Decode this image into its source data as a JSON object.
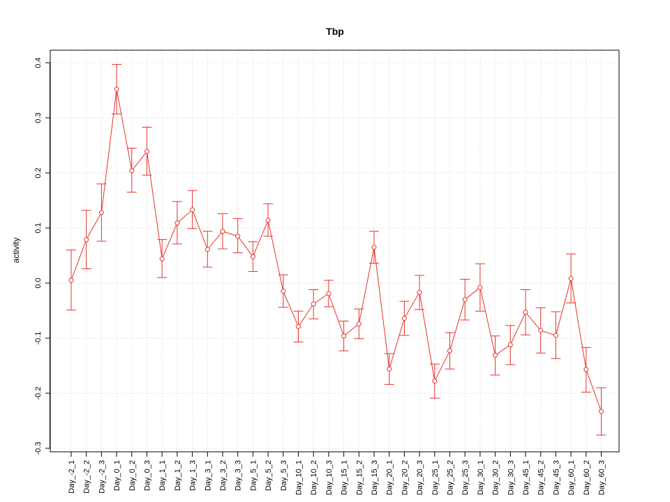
{
  "chart_data": {
    "type": "line",
    "title": "Tbp",
    "xlabel": "",
    "ylabel": "activity",
    "ylim": [
      -0.3,
      0.4
    ],
    "yticks": [
      "-0.3",
      "-0.2",
      "-0.1",
      "0.0",
      "0.1",
      "0.2",
      "0.3",
      "0.4"
    ],
    "grid": true,
    "categories": [
      "Day_-2_1",
      "Day_-2_2",
      "Day_-2_3",
      "Day_0_1",
      "Day_0_2",
      "Day_0_3",
      "Day_1_1",
      "Day_1_2",
      "Day_1_3",
      "Day_3_1",
      "Day_3_2",
      "Day_3_3",
      "Day_5_1",
      "Day_5_2",
      "Day_5_3",
      "Day_10_1",
      "Day_10_2",
      "Day_10_3",
      "Day_15_1",
      "Day_15_2",
      "Day_15_3",
      "Day_20_1",
      "Day_20_2",
      "Day_20_3",
      "Day_25_1",
      "Day_25_2",
      "Day_25_3",
      "Day_30_1",
      "Day_30_2",
      "Day_30_3",
      "Day_45_1",
      "Day_45_2",
      "Day_45_3",
      "Day_60_1",
      "Day_60_2",
      "Day_60_3"
    ],
    "series": [
      {
        "name": "",
        "color": "#e8302a",
        "values": [
          0.005,
          0.079,
          0.128,
          0.352,
          0.204,
          0.239,
          0.044,
          0.109,
          0.133,
          0.061,
          0.094,
          0.085,
          0.048,
          0.114,
          -0.015,
          -0.079,
          -0.038,
          -0.019,
          -0.096,
          -0.074,
          0.065,
          -0.156,
          -0.064,
          -0.017,
          -0.178,
          -0.123,
          -0.03,
          -0.008,
          -0.131,
          -0.112,
          -0.053,
          -0.086,
          -0.095,
          0.008,
          -0.157,
          -0.233
        ],
        "upper": [
          0.06,
          0.132,
          0.18,
          0.397,
          0.245,
          0.283,
          0.079,
          0.148,
          0.168,
          0.094,
          0.126,
          0.117,
          0.075,
          0.144,
          0.015,
          -0.051,
          -0.012,
          0.005,
          -0.069,
          -0.047,
          0.094,
          -0.128,
          -0.033,
          0.014,
          -0.147,
          -0.09,
          0.007,
          0.035,
          -0.096,
          -0.077,
          -0.012,
          -0.045,
          -0.052,
          0.053,
          -0.117,
          -0.19
        ],
        "lower": [
          -0.049,
          0.026,
          0.076,
          0.307,
          0.165,
          0.196,
          0.01,
          0.071,
          0.099,
          0.029,
          0.062,
          0.055,
          0.021,
          0.085,
          -0.044,
          -0.107,
          -0.065,
          -0.043,
          -0.123,
          -0.101,
          0.036,
          -0.184,
          -0.095,
          -0.048,
          -0.209,
          -0.156,
          -0.067,
          -0.051,
          -0.167,
          -0.148,
          -0.094,
          -0.127,
          -0.137,
          -0.036,
          -0.198,
          -0.276
        ]
      }
    ]
  }
}
